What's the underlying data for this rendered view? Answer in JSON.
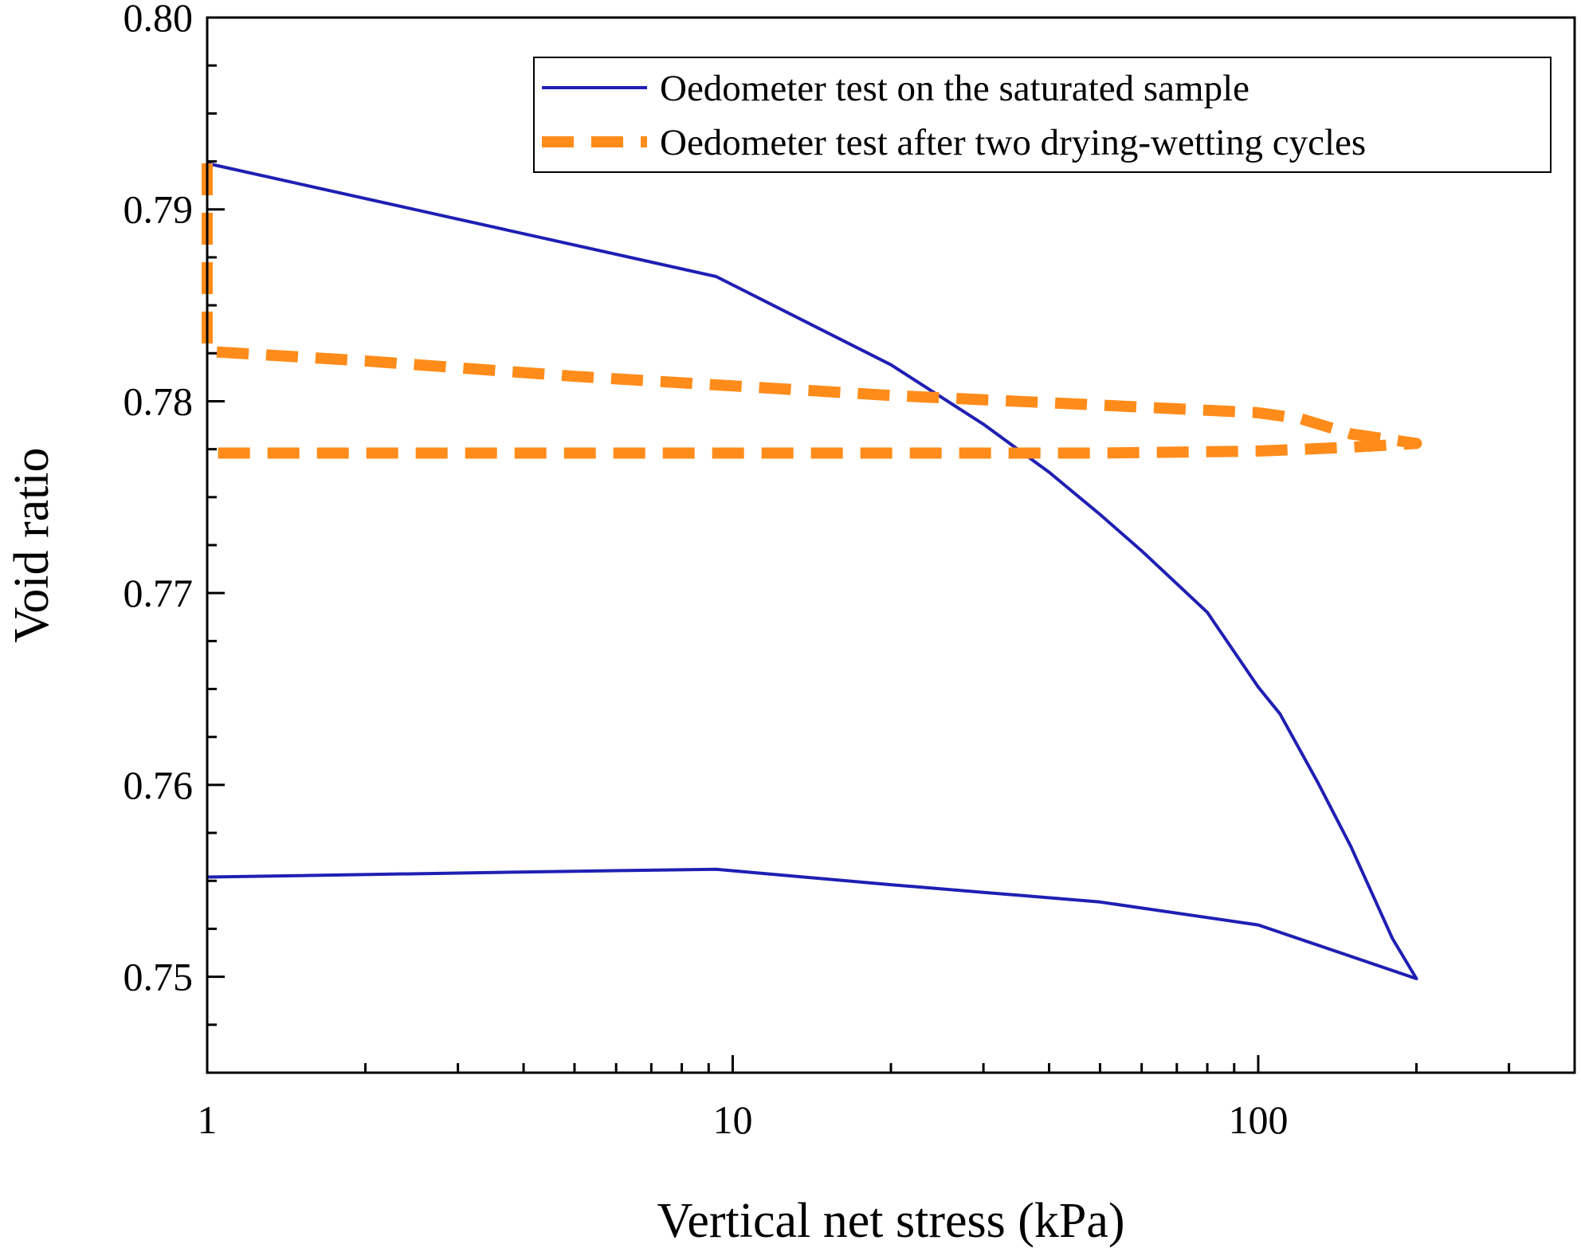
{
  "chart_data": {
    "type": "line",
    "title": "",
    "xlabel": "Vertical net stress (kPa)",
    "ylabel": "Void ratio",
    "xscale": "log",
    "xlim": [
      1,
      400
    ],
    "ylim": [
      0.745,
      0.8
    ],
    "x_ticks": [
      1,
      10,
      100
    ],
    "x_tick_labels": [
      "1",
      "10",
      "100"
    ],
    "y_ticks": [
      0.75,
      0.76,
      0.77,
      0.78,
      0.79,
      0.8
    ],
    "y_tick_labels": [
      "0.75",
      "0.76",
      "0.77",
      "0.78",
      "0.79",
      "0.80"
    ],
    "grid": false,
    "legend_position": "top-right",
    "series": [
      {
        "name": "Oedometer test on the saturated sample",
        "color": "#1f1fb4",
        "line_style": "solid",
        "points": [
          [
            1,
            0.7924
          ],
          [
            9.3,
            0.7865
          ],
          [
            20,
            0.7819
          ],
          [
            30,
            0.7788
          ],
          [
            40,
            0.7763
          ],
          [
            50,
            0.7741
          ],
          [
            60,
            0.7722
          ],
          [
            80,
            0.769
          ],
          [
            100,
            0.7651
          ],
          [
            110,
            0.7637
          ],
          [
            130,
            0.7601
          ],
          [
            150,
            0.7568
          ],
          [
            180,
            0.752
          ],
          [
            200,
            0.7499
          ],
          [
            100,
            0.7527
          ],
          [
            50,
            0.7539
          ],
          [
            30,
            0.7544
          ],
          [
            20,
            0.7548
          ],
          [
            9.3,
            0.7556
          ],
          [
            5,
            0.7555
          ],
          [
            1,
            0.7552
          ]
        ]
      },
      {
        "name": "Oedometer test after two drying-wetting cycles",
        "color": "#ff8c1a",
        "line_style": "dashed",
        "points": [
          [
            1,
            0.7924
          ],
          [
            1,
            0.7826
          ],
          [
            2,
            0.7821
          ],
          [
            5,
            0.7813
          ],
          [
            10,
            0.7808
          ],
          [
            20,
            0.7803
          ],
          [
            50,
            0.7798
          ],
          [
            100,
            0.7794
          ],
          [
            120,
            0.7791
          ],
          [
            150,
            0.7783
          ],
          [
            200,
            0.7778
          ],
          [
            150,
            0.7776
          ],
          [
            100,
            0.7774
          ],
          [
            50,
            0.7773
          ],
          [
            20,
            0.7773
          ],
          [
            10,
            0.7773
          ],
          [
            5,
            0.7773
          ],
          [
            2,
            0.7773
          ],
          [
            1,
            0.7773
          ]
        ]
      }
    ]
  }
}
